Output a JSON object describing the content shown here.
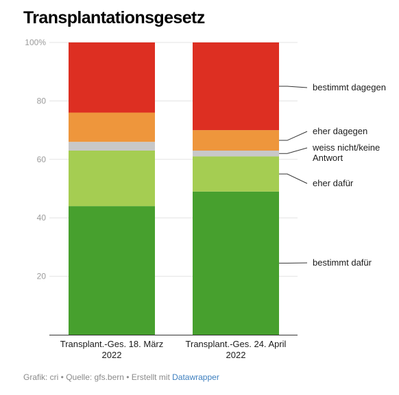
{
  "title": "Transplantationsgesetz",
  "footer": {
    "text": "Grafik: cri • Quelle: gfs.bern • Erstellt mit ",
    "link": "Datawrapper"
  },
  "chart_data": {
    "type": "bar",
    "stacked": true,
    "y_unit_suffix": "%",
    "ylim": [
      0,
      100
    ],
    "yticks": [
      20,
      40,
      60,
      80,
      100
    ],
    "ytick_labels": [
      "20",
      "40",
      "60",
      "80",
      "100%"
    ],
    "grid": true,
    "legend": "right, labels attached to the second bar",
    "categories": [
      [
        "Transplant.-Ges. 18. März",
        "2022"
      ],
      [
        "Transplant.-Ges. 24. April",
        "2022"
      ]
    ],
    "series": [
      {
        "name": "bestimmt dafür",
        "label_lines": [
          "bestimmt dafür"
        ],
        "color": "#47a02e",
        "values": [
          44,
          49
        ]
      },
      {
        "name": "eher dafür",
        "label_lines": [
          "eher dafür"
        ],
        "color": "#a5cd52",
        "values": [
          19,
          12
        ]
      },
      {
        "name": "weiss nicht/keine Antwort",
        "label_lines": [
          "weiss nicht/keine",
          "Antwort"
        ],
        "color": "#c8c8c8",
        "values": [
          3,
          2
        ]
      },
      {
        "name": "eher dagegen",
        "label_lines": [
          "eher dagegen"
        ],
        "color": "#ee963c",
        "values": [
          10,
          7
        ]
      },
      {
        "name": "bestimmt dagegen",
        "label_lines": [
          "bestimmt dagegen"
        ],
        "color": "#dd2f22",
        "values": [
          24,
          30
        ]
      }
    ]
  }
}
